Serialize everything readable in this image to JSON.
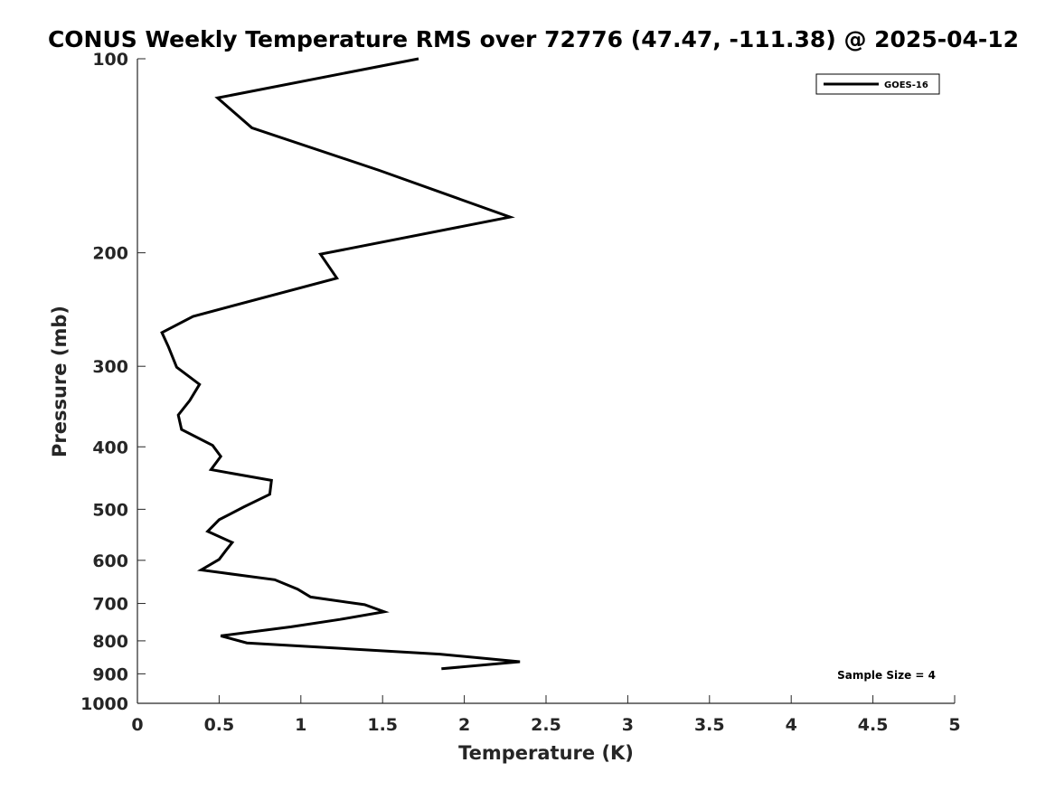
{
  "chart_data": {
    "type": "line",
    "title": "CONUS Weekly Temperature RMS over 72776 (47.47, -111.38) @ 2025-04-12",
    "xlabel": "Temperature (K)",
    "ylabel": "Pressure (mb)",
    "xlim": [
      0,
      5
    ],
    "ylim": [
      100,
      1000
    ],
    "y_scale": "log",
    "y_reversed": true,
    "x_ticks": [
      "0",
      "0.5",
      "1",
      "1.5",
      "2",
      "2.5",
      "3",
      "3.5",
      "4",
      "4.5",
      "5"
    ],
    "x_tick_values": [
      0,
      0.5,
      1,
      1.5,
      2,
      2.5,
      3,
      3.5,
      4,
      4.5,
      5
    ],
    "y_ticks": [
      "100",
      "200",
      "300",
      "400",
      "500",
      "600",
      "700",
      "800",
      "900",
      "1000"
    ],
    "y_tick_values": [
      100,
      200,
      300,
      400,
      500,
      600,
      700,
      800,
      900,
      1000
    ],
    "grid": false,
    "legend": {
      "position": "top-right",
      "entries": [
        "GOES-16"
      ]
    },
    "annotation": "Sample Size = 4",
    "line_color": "#000000",
    "series": [
      {
        "name": "GOES-16",
        "points": [
          [
            1.72,
            100
          ],
          [
            0.49,
            115
          ],
          [
            0.7,
            128
          ],
          [
            1.48,
            149
          ],
          [
            2.28,
            176
          ],
          [
            1.12,
            201
          ],
          [
            1.22,
            219
          ],
          [
            0.34,
            251
          ],
          [
            0.15,
            266
          ],
          [
            0.19,
            280
          ],
          [
            0.24,
            301
          ],
          [
            0.38,
            320
          ],
          [
            0.32,
            339
          ],
          [
            0.25,
            357
          ],
          [
            0.27,
            376
          ],
          [
            0.46,
            398
          ],
          [
            0.51,
            414
          ],
          [
            0.45,
            434
          ],
          [
            0.82,
            451
          ],
          [
            0.81,
            474
          ],
          [
            0.65,
            496
          ],
          [
            0.5,
            519
          ],
          [
            0.43,
            541
          ],
          [
            0.58,
            563
          ],
          [
            0.54,
            580
          ],
          [
            0.5,
            598
          ],
          [
            0.39,
            621
          ],
          [
            0.84,
            643
          ],
          [
            0.98,
            665
          ],
          [
            1.06,
            684
          ],
          [
            1.39,
            703
          ],
          [
            1.51,
            721
          ],
          [
            1.24,
            741
          ],
          [
            0.94,
            761
          ],
          [
            0.51,
            786
          ],
          [
            0.67,
            806
          ],
          [
            1.85,
            839
          ],
          [
            2.34,
            862
          ],
          [
            1.86,
            884
          ]
        ]
      }
    ]
  }
}
